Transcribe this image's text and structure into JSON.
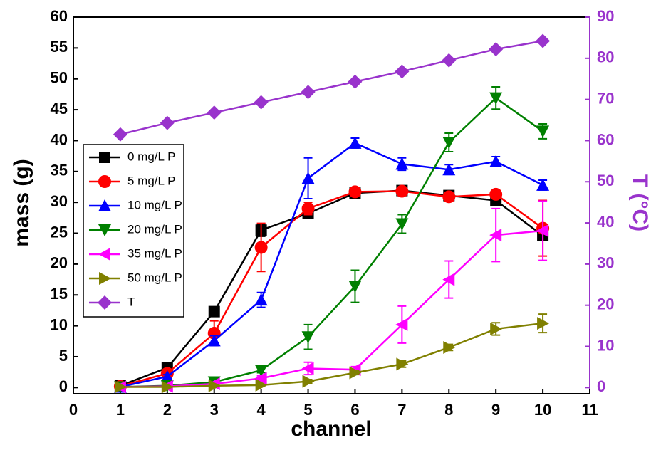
{
  "chart_data": {
    "type": "line",
    "x_label": "channel",
    "y_label": "mass (g)",
    "y2_label": "T (°C)",
    "x": [
      1,
      2,
      3,
      4,
      5,
      6,
      7,
      8,
      9,
      10
    ],
    "xlim": [
      0,
      11
    ],
    "xticks": [
      0,
      1,
      2,
      3,
      4,
      5,
      6,
      7,
      8,
      9,
      10,
      11
    ],
    "ylim": [
      -1,
      60
    ],
    "yticks": [
      0,
      5,
      10,
      15,
      20,
      25,
      30,
      35,
      40,
      45,
      50,
      55,
      60
    ],
    "y2lim": [
      -1.5,
      90
    ],
    "y2ticks": [
      0,
      10,
      20,
      30,
      40,
      50,
      60,
      70,
      80,
      90
    ],
    "y2_color": "#9933cc",
    "legend": "left",
    "series": [
      {
        "name": "0 mg/L P",
        "color": "#000000",
        "marker": "square",
        "values": [
          0.3,
          3.2,
          12.3,
          25.5,
          28.2,
          31.5,
          31.9,
          31.1,
          30.3,
          24.6
        ],
        "errors": [
          0.2,
          0.3,
          0.5,
          1,
          0.5,
          0.5,
          0.5,
          0.5,
          0.5,
          0.5
        ]
      },
      {
        "name": "5 mg/L P",
        "color": "#ff0000",
        "marker": "circle",
        "values": [
          0.2,
          2.3,
          8.8,
          22.7,
          29,
          31.7,
          31.8,
          30.9,
          31.3,
          25.8
        ],
        "errors": [
          0.2,
          0.3,
          2,
          3.9,
          1,
          0.5,
          0.5,
          0.5,
          0.5,
          4.5
        ]
      },
      {
        "name": "10 mg/L P",
        "color": "#0000ff",
        "marker": "up",
        "values": [
          0.1,
          1.8,
          7.6,
          14.2,
          33.9,
          39.6,
          36.2,
          35.3,
          36.6,
          32.8
        ],
        "errors": [
          0.1,
          0.3,
          0.8,
          1.2,
          3.3,
          0.8,
          1,
          0.8,
          0.8,
          0.8
        ]
      },
      {
        "name": "20 mg/L P",
        "color": "#008000",
        "marker": "down",
        "values": [
          0.1,
          0.3,
          0.9,
          2.8,
          8.2,
          16.4,
          26.5,
          39.7,
          46.9,
          41.5
        ],
        "errors": [
          0.1,
          0.2,
          0.3,
          0.4,
          2,
          2.6,
          1.5,
          1.5,
          1.8,
          1.2
        ]
      },
      {
        "name": "35 mg/L P",
        "color": "#ff00ff",
        "marker": "left",
        "values": [
          0.1,
          0.2,
          0.6,
          1.5,
          3.1,
          2.9,
          10.2,
          17.5,
          24.7,
          25.4
        ],
        "errors": [
          0.1,
          0.1,
          0.2,
          0.4,
          1,
          0.5,
          3,
          3,
          4.3,
          4.8
        ]
      },
      {
        "name": "50 mg/L P",
        "color": "#808000",
        "marker": "right",
        "values": [
          0.1,
          0.1,
          0.3,
          0.4,
          1,
          2.4,
          3.8,
          6.5,
          9.5,
          10.4
        ],
        "errors": [
          0.05,
          0.05,
          0.1,
          0.1,
          0.3,
          0.3,
          0.5,
          0.5,
          1,
          1.5
        ]
      },
      {
        "name": "T",
        "color": "#9933cc",
        "marker": "diamond",
        "axis": "y2",
        "values": [
          61.5,
          64.3,
          66.8,
          69.3,
          71.8,
          74.3,
          76.8,
          79.5,
          82.2,
          84.2
        ]
      }
    ]
  }
}
